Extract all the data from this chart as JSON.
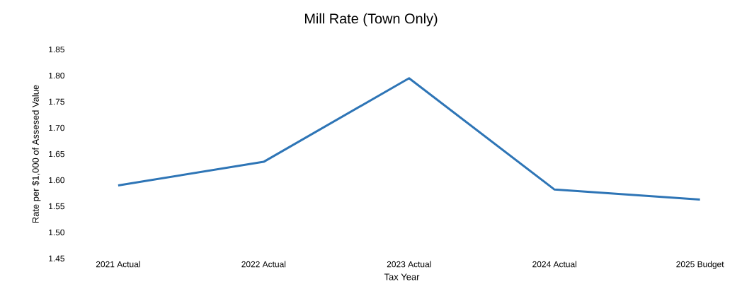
{
  "chart_data": {
    "type": "line",
    "title": "Mill Rate (Town Only)",
    "xlabel": "Tax Year",
    "ylabel": "Rate per $1,000 of Assesed Value",
    "categories": [
      "2021  Actual",
      "2022  Actual",
      "2023  Actual",
      "2024  Actual",
      "2025  Budget"
    ],
    "values": [
      1.59,
      1.635,
      1.795,
      1.582,
      1.563
    ],
    "color": "#2e75b6",
    "ylim": [
      1.45,
      1.85
    ],
    "yticks": [
      1.45,
      {
        "value": 1.5,
        "label": "1.50"
      },
      1.55,
      {
        "value": 1.6,
        "label": "1.60"
      },
      1.65,
      {
        "value": 1.7,
        "label": "1.70"
      },
      1.75,
      {
        "value": 1.8,
        "label": "1.80"
      },
      1.85
    ],
    "grid": false,
    "marker": "none",
    "line_style": "solid"
  }
}
